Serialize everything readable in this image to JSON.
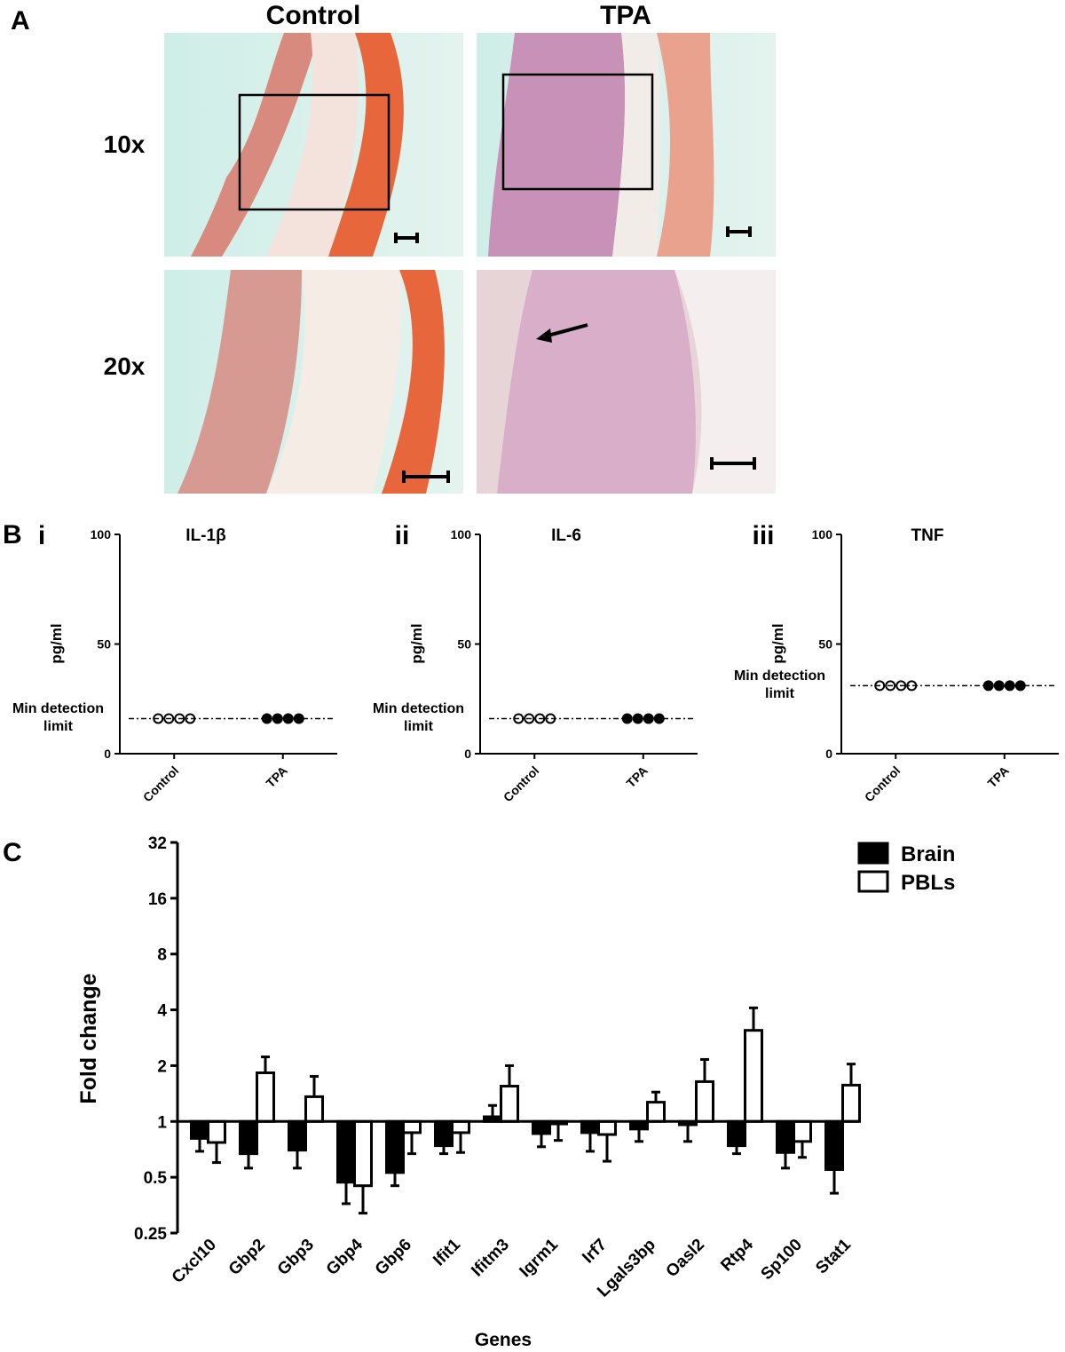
{
  "panel_a": {
    "label": "A",
    "columns": [
      "Control",
      "TPA"
    ],
    "rows": [
      "10x",
      "20x"
    ]
  },
  "panel_b_label": "B",
  "chart_data": [
    {
      "type": "dot",
      "panel_label": "i",
      "title": "IL-1β",
      "ylabel": "pg/ml",
      "categories": [
        "Control",
        "TPA"
      ],
      "values": [
        [
          16,
          16,
          16,
          16
        ],
        [
          16,
          16,
          16,
          16
        ]
      ],
      "fills": [
        "none",
        "#000000"
      ],
      "ylim": [
        0,
        100
      ],
      "yticks": [
        0,
        50,
        100
      ],
      "detection_limit": 16,
      "annotation": "Min detection limit"
    },
    {
      "type": "dot",
      "panel_label": "ii",
      "title": "IL-6",
      "ylabel": "pg/ml",
      "categories": [
        "Control",
        "TPA"
      ],
      "values": [
        [
          16,
          16,
          16,
          16
        ],
        [
          16,
          16,
          16,
          16
        ]
      ],
      "fills": [
        "none",
        "#000000"
      ],
      "ylim": [
        0,
        100
      ],
      "yticks": [
        0,
        50,
        100
      ],
      "detection_limit": 16,
      "annotation": "Min detection limit"
    },
    {
      "type": "dot",
      "panel_label": "iii",
      "title": "TNF",
      "ylabel": "pg/ml",
      "categories": [
        "Control",
        "TPA"
      ],
      "values": [
        [
          31,
          31,
          31,
          31
        ],
        [
          31,
          31,
          31,
          31
        ]
      ],
      "fills": [
        "none",
        "#000000"
      ],
      "ylim": [
        0,
        100
      ],
      "yticks": [
        0,
        50,
        100
      ],
      "detection_limit": 31,
      "annotation": "Min detection limit"
    },
    {
      "type": "bar",
      "panel_label": "C",
      "ylabel": "Fold change",
      "xlabel": "Genes",
      "categories": [
        "Cxcl10",
        "Gbp2",
        "Gbp3",
        "Gbp4",
        "Gbp6",
        "Ifit1",
        "Ifitm3",
        "Igrm1",
        "Irf7",
        "Lgals3bp",
        "Oasl2",
        "Rtp4",
        "Sp100",
        "Stat1"
      ],
      "series": [
        {
          "name": "Brain",
          "color": "#000000",
          "values": [
            0.81,
            0.67,
            0.7,
            0.47,
            0.53,
            0.74,
            1.06,
            0.86,
            0.87,
            0.91,
            0.96,
            0.74,
            0.68,
            0.55
          ],
          "errors": [
            0.12,
            0.11,
            0.14,
            0.11,
            0.08,
            0.07,
            0.16,
            0.13,
            0.18,
            0.13,
            0.18,
            0.07,
            0.12,
            0.14
          ]
        },
        {
          "name": "PBLs",
          "color": "#ffffff",
          "values": [
            0.77,
            1.83,
            1.36,
            0.45,
            0.87,
            0.87,
            1.55,
            0.97,
            0.85,
            1.27,
            1.64,
            3.1,
            0.78,
            1.57
          ],
          "errors": [
            0.17,
            0.4,
            0.39,
            0.13,
            0.2,
            0.19,
            0.45,
            0.18,
            0.24,
            0.17,
            0.52,
            1.0,
            0.14,
            0.47
          ]
        }
      ],
      "ylim": [
        0.25,
        32
      ],
      "yticks": [
        0.25,
        0.5,
        1,
        2,
        4,
        8,
        16,
        32
      ],
      "log_base": 2,
      "baseline": 1,
      "legend": "upper right"
    }
  ]
}
